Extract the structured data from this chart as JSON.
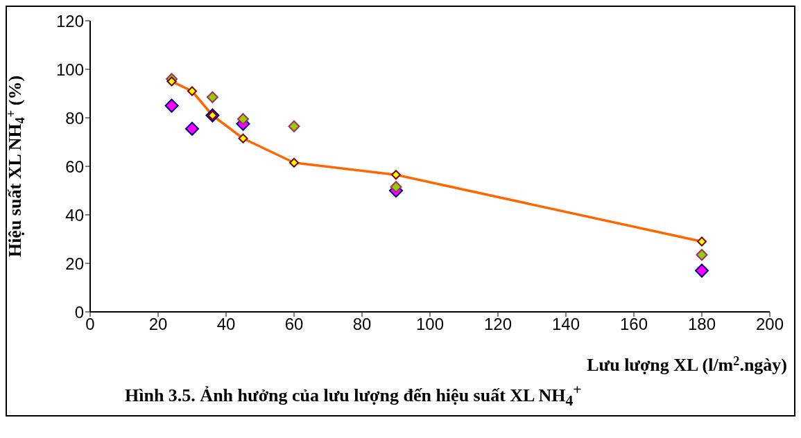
{
  "chart_data": {
    "type": "scatter",
    "annotations": [
      "Hình 3.5. Ảnh hưởng của lưu lượng đến hiệu suất XL NH$_{4}$$^{+}$"
    ],
    "xlabel": "Lưu lượng XL (l/m$^{2}$.ngày)",
    "ylabel": "Hiệu suất XL NH$_{4}$$^{+}$ (%)",
    "x": [
      24,
      30,
      36,
      45,
      60,
      90,
      180
    ],
    "series": [
      {
        "color": "#ff00ff",
        "values": [
          85,
          75.5,
          81,
          77.5,
          null,
          50,
          17
        ]
      },
      {
        "color": "#99cc00",
        "values": [
          96,
          null,
          88.5,
          79.5,
          76.5,
          51.5,
          23.5
        ]
      },
      {
        "type": "line",
        "color": "#ff6600",
        "values": [
          95,
          91,
          81,
          71.5,
          61.5,
          56.5,
          29
        ]
      }
    ],
    "marker": "diamond",
    "grid": false,
    "legend": false,
    "xlim": [
      0,
      200
    ],
    "xticks": [
      0,
      20,
      40,
      60,
      80,
      100,
      120,
      140,
      160,
      180,
      200
    ],
    "ylim": [
      0,
      120
    ],
    "yticks": [
      0,
      20,
      40,
      60,
      80,
      100,
      120
    ]
  }
}
